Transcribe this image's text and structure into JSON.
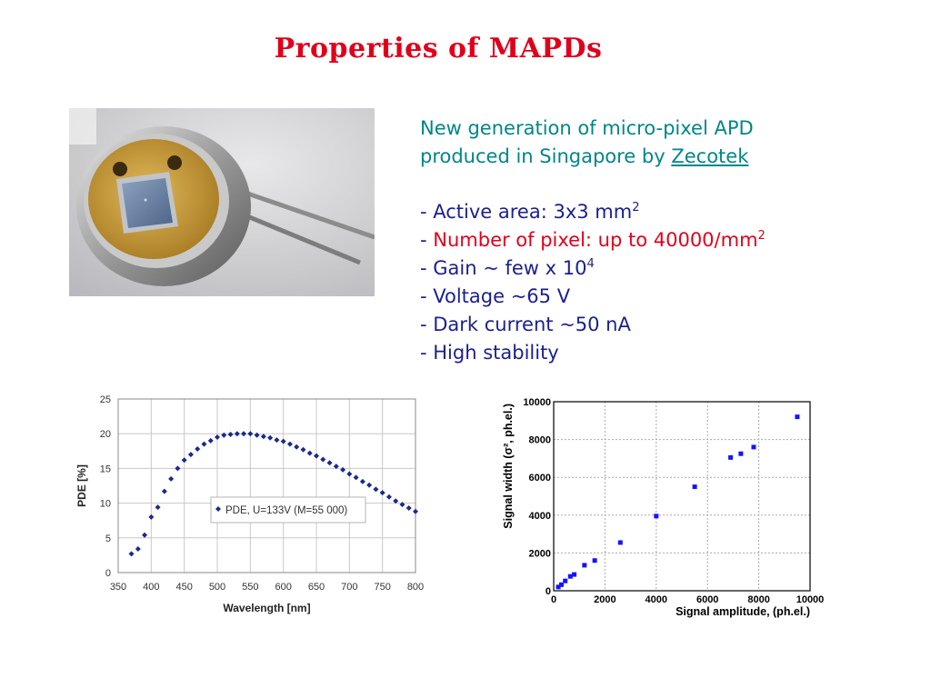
{
  "slide": {
    "title": "Properties  of MAPDs",
    "intro_line1": "New generation of micro-pixel APD",
    "intro_line2_prefix": "produced in Singapore by ",
    "intro_link": "Zecotek",
    "bullets": [
      {
        "text": "- Active area:   3x3 mm",
        "sup": "2"
      },
      {
        "dash": "- ",
        "text": "Number of pixel: up to 40000/mm",
        "sup": "2"
      },
      {
        "text": "- Gain ~  few x 10",
        "sup": "4"
      },
      {
        "text": "- Voltage ~65 V"
      },
      {
        "text": "- Dark current ~50 nA"
      },
      {
        "text": "- High stability"
      }
    ],
    "colors": {
      "title": "#e0001b",
      "intro": "#00868a",
      "bullets": "#1b1f8f",
      "highlight": "#e3001b"
    }
  },
  "chart_data": [
    {
      "type": "scatter",
      "xlabel": "Wavelength [nm]",
      "ylabel": "PDE [%]",
      "xlim": [
        350,
        800
      ],
      "ylim": [
        0,
        25
      ],
      "xticks": [
        350,
        400,
        450,
        500,
        550,
        600,
        650,
        700,
        750,
        800
      ],
      "yticks": [
        0,
        5,
        10,
        15,
        20,
        25
      ],
      "grid": true,
      "legend": "center-left",
      "series": [
        {
          "name": "PDE, U=133V (M=55 000)",
          "color": "#1a2a8c",
          "x": [
            370,
            380,
            390,
            400,
            410,
            420,
            430,
            440,
            450,
            460,
            470,
            480,
            490,
            500,
            510,
            520,
            530,
            540,
            550,
            560,
            570,
            580,
            590,
            600,
            610,
            620,
            630,
            640,
            650,
            660,
            670,
            680,
            690,
            700,
            710,
            720,
            730,
            740,
            750,
            760,
            770,
            780,
            790,
            800
          ],
          "y": [
            2.7,
            3.4,
            5.4,
            8.0,
            9.4,
            11.7,
            13.5,
            15.0,
            16.2,
            17.0,
            17.8,
            18.5,
            19.0,
            19.5,
            19.8,
            19.9,
            20.0,
            20.0,
            20.0,
            19.8,
            19.6,
            19.4,
            19.1,
            18.9,
            18.5,
            18.1,
            17.7,
            17.2,
            16.8,
            16.3,
            15.8,
            15.3,
            14.8,
            14.2,
            13.7,
            13.1,
            12.6,
            12.0,
            11.5,
            10.9,
            10.3,
            9.8,
            9.3,
            8.8
          ]
        }
      ]
    },
    {
      "type": "scatter",
      "xlabel": "Signal amplitude, (ph.el.)",
      "ylabel": "Signal width  (σ², ph.el.)",
      "xlim": [
        0,
        10000
      ],
      "ylim": [
        0,
        10000
      ],
      "xticks": [
        0,
        2000,
        4000,
        6000,
        8000,
        10000
      ],
      "yticks": [
        0,
        2000,
        4000,
        6000,
        8000,
        10000
      ],
      "grid": true,
      "series": [
        {
          "color": "#1414ff",
          "x": [
            180,
            300,
            450,
            650,
            800,
            1200,
            1600,
            2600,
            4000,
            5500,
            6900,
            7300,
            7800,
            9500
          ],
          "y": [
            200,
            320,
            520,
            760,
            860,
            1350,
            1600,
            2550,
            3950,
            5500,
            7050,
            7250,
            7600,
            9200
          ]
        }
      ]
    }
  ]
}
